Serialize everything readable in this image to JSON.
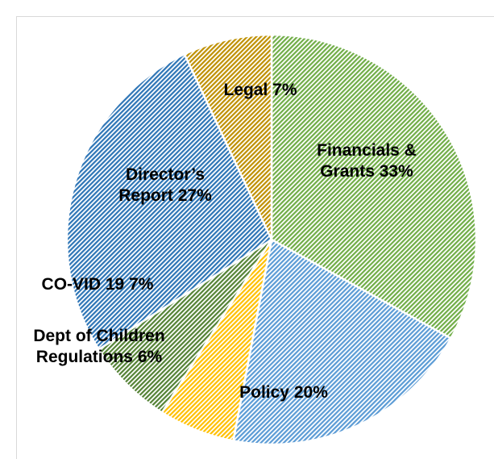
{
  "chart_data": {
    "type": "pie",
    "categories": [
      "Financials & Grants",
      "Policy",
      "Dept of Children Regulations",
      "CO-VID 19",
      "Director’s Report",
      "Legal"
    ],
    "values": [
      33,
      20,
      6,
      7,
      27,
      7
    ],
    "value_labels": [
      "33%",
      "20%",
      "6%",
      "7%",
      "27%",
      "7%"
    ],
    "colors": [
      "#70ad47",
      "#5b9bd5",
      "#ffc000",
      "#548235",
      "#2e75b6",
      "#bf9000"
    ]
  }
}
